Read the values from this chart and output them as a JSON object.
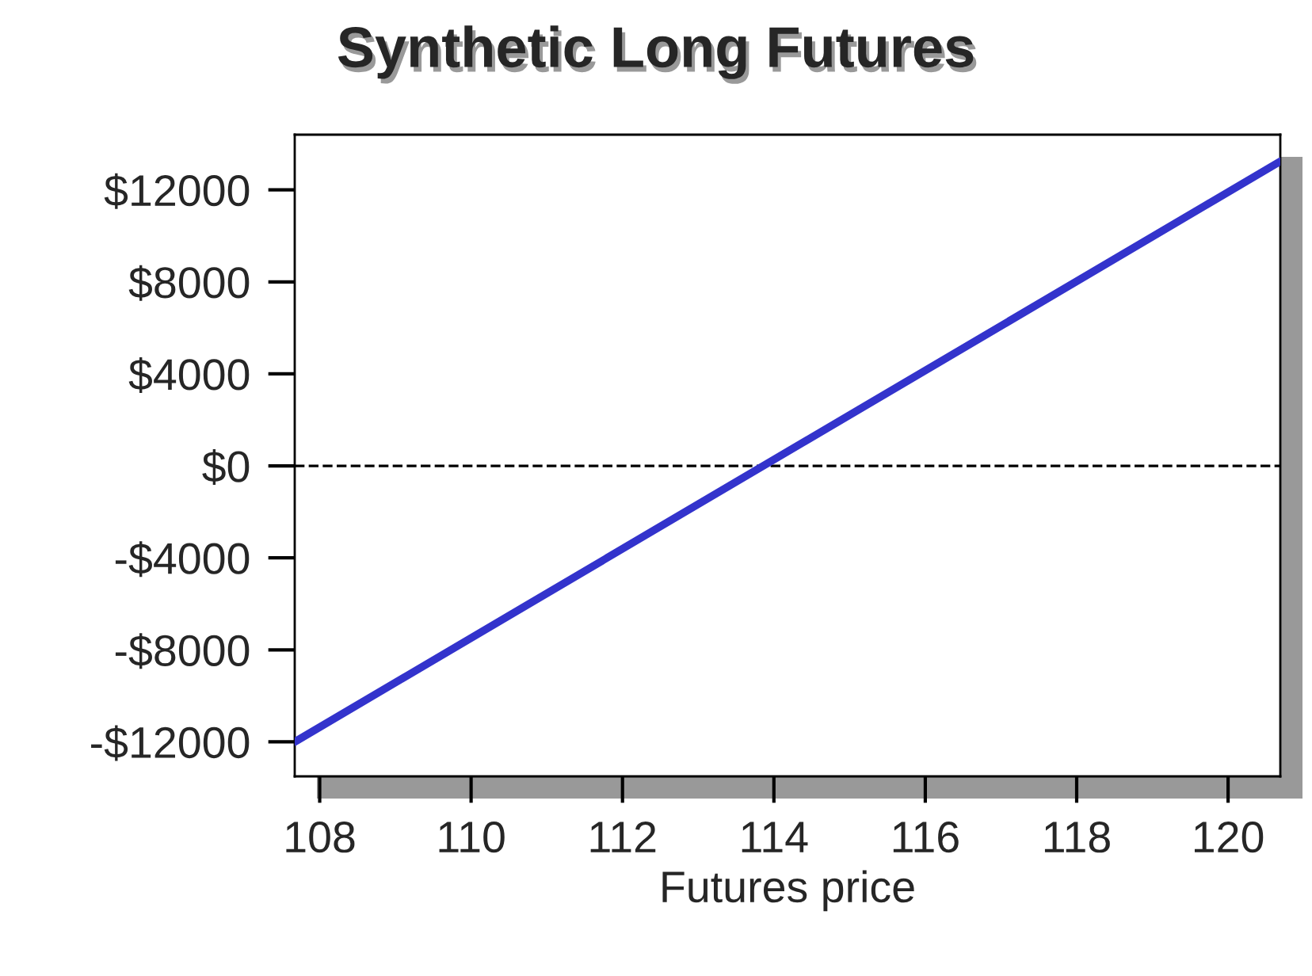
{
  "chart_data": {
    "type": "line",
    "title": "Synthetic Long Futures",
    "xlabel": "Futures price",
    "series": [
      {
        "color": "#3333cc",
        "x": [
          107.67,
          120.69
        ],
        "values": [
          -12000,
          13240
        ]
      }
    ],
    "xlim": [
      107.67,
      120.69
    ],
    "ylim": [
      -13500,
      14400
    ],
    "xticks": [
      108,
      110,
      112,
      114,
      116,
      118,
      120
    ],
    "yticks": [
      {
        "value": -12000,
        "label": "-$12000"
      },
      {
        "value": -8000,
        "label": "-$8000"
      },
      {
        "value": -4000,
        "label": "-$4000"
      },
      {
        "value": 0,
        "label": "$0"
      },
      {
        "value": 4000,
        "label": "$4000"
      },
      {
        "value": 8000,
        "label": "$8000"
      },
      {
        "value": 12000,
        "label": "$12000"
      }
    ],
    "ref_lines": [
      {
        "axis": "y",
        "value": 0,
        "color": "#000000",
        "line_style": "dashed"
      }
    ],
    "grid": false,
    "legend": false,
    "line_style": "solid",
    "marker": "none"
  }
}
